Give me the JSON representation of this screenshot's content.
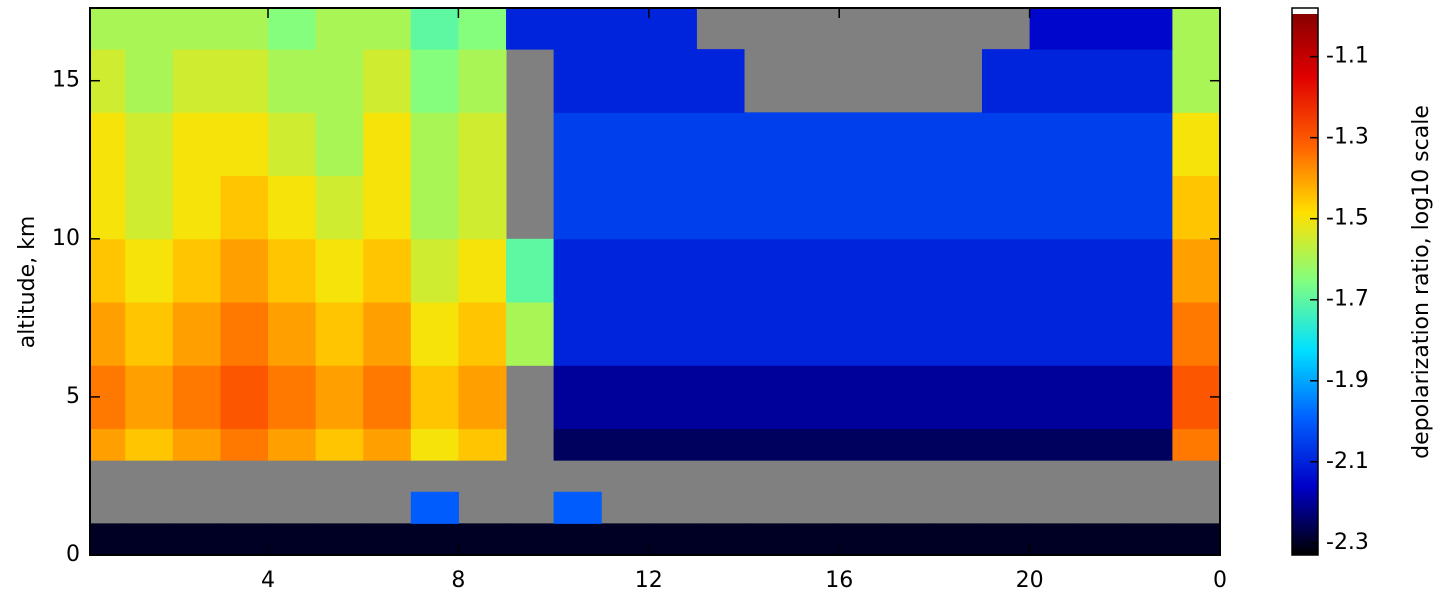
{
  "chart_data": {
    "type": "heatmap",
    "ylabel": "altitude, km",
    "colorbar_label": "depolarization ratio, log10 scale",
    "x_edges": [
      0.26,
      1,
      2,
      3,
      4,
      5,
      6,
      7,
      8,
      9,
      10,
      11,
      12,
      13,
      14,
      15,
      16,
      17,
      18,
      19,
      20,
      21,
      22,
      23,
      24
    ],
    "y_edges": [
      0,
      1,
      2,
      3,
      4,
      6,
      8,
      10,
      12,
      14,
      16,
      17.3
    ],
    "z": [
      [
        -2.3,
        -2.3,
        -2.3,
        -2.3,
        -2.3,
        -2.3,
        -2.3,
        -2.3,
        -2.3,
        -2.3,
        -2.3,
        -2.3,
        -2.3,
        -2.3,
        -2.3,
        -2.3,
        -2.3,
        -2.3,
        -2.3,
        -2.3,
        -2.3,
        -2.3,
        -2.3,
        -2.3
      ],
      [
        null,
        null,
        null,
        null,
        null,
        null,
        null,
        -2.0,
        null,
        null,
        -2.0,
        null,
        null,
        null,
        null,
        null,
        null,
        null,
        null,
        null,
        null,
        null,
        null,
        null
      ],
      [
        null,
        null,
        null,
        null,
        null,
        null,
        null,
        null,
        null,
        null,
        null,
        null,
        null,
        null,
        null,
        null,
        null,
        null,
        null,
        null,
        null,
        null,
        null,
        null
      ],
      [
        -1.4,
        -1.45,
        -1.4,
        -1.35,
        -1.4,
        -1.45,
        -1.4,
        -1.5,
        -1.45,
        null,
        -2.25,
        -2.25,
        -2.25,
        -2.25,
        -2.25,
        -2.25,
        -2.25,
        -2.25,
        -2.25,
        -2.25,
        -2.25,
        -2.25,
        -2.25,
        -1.35
      ],
      [
        -1.35,
        -1.4,
        -1.35,
        -1.3,
        -1.35,
        -1.4,
        -1.35,
        -1.45,
        -1.4,
        null,
        -2.2,
        -2.2,
        -2.2,
        -2.2,
        -2.2,
        -2.2,
        -2.2,
        -2.2,
        -2.2,
        -2.2,
        -2.2,
        -2.2,
        -2.2,
        -1.3
      ],
      [
        -1.4,
        -1.45,
        -1.4,
        -1.35,
        -1.4,
        -1.45,
        -1.4,
        -1.5,
        -1.45,
        -1.6,
        -2.1,
        -2.1,
        -2.1,
        -2.1,
        -2.1,
        -2.1,
        -2.1,
        -2.1,
        -2.1,
        -2.1,
        -2.1,
        -2.1,
        -2.1,
        -1.35
      ],
      [
        -1.45,
        -1.5,
        -1.45,
        -1.4,
        -1.45,
        -1.5,
        -1.45,
        -1.55,
        -1.5,
        -1.7,
        -2.1,
        -2.1,
        -2.1,
        -2.1,
        -2.1,
        -2.1,
        -2.1,
        -2.1,
        -2.1,
        -2.1,
        -2.1,
        -2.1,
        -2.1,
        -1.4
      ],
      [
        -1.5,
        -1.55,
        -1.5,
        -1.45,
        -1.5,
        -1.55,
        -1.5,
        -1.6,
        -1.55,
        null,
        -2.05,
        -2.05,
        -2.05,
        -2.05,
        -2.05,
        -2.05,
        -2.05,
        -2.05,
        -2.05,
        -2.05,
        -2.05,
        -2.05,
        -2.05,
        -1.45
      ],
      [
        -1.5,
        -1.55,
        -1.5,
        -1.5,
        -1.55,
        -1.6,
        -1.5,
        -1.6,
        -1.55,
        null,
        -2.05,
        -2.05,
        -2.05,
        -2.05,
        -2.05,
        -2.05,
        -2.05,
        -2.05,
        -2.05,
        -2.05,
        -2.05,
        -2.05,
        -2.05,
        -1.5
      ],
      [
        -1.55,
        -1.6,
        -1.55,
        -1.55,
        -1.6,
        -1.6,
        -1.55,
        -1.65,
        -1.6,
        null,
        -2.1,
        -2.1,
        -2.1,
        -2.1,
        null,
        null,
        null,
        null,
        null,
        -2.1,
        -2.1,
        -2.1,
        -2.1,
        -1.6
      ],
      [
        -1.6,
        -1.6,
        -1.6,
        -1.6,
        -1.65,
        -1.6,
        -1.6,
        -1.7,
        -1.65,
        -2.1,
        -2.1,
        -2.1,
        -2.1,
        null,
        null,
        null,
        null,
        null,
        null,
        null,
        -2.15,
        -2.15,
        -2.15,
        -1.6
      ]
    ],
    "xlim": [
      0.26,
      24
    ],
    "ylim": [
      0,
      17.3
    ],
    "xticks": [
      4,
      8,
      12,
      16,
      20,
      {
        "value": 24,
        "label": "0"
      }
    ],
    "yticks": [
      0,
      5,
      10,
      15
    ],
    "clim": [
      -2.33,
      -0.98
    ],
    "cticks": [
      -1.1,
      -1.3,
      -1.5,
      -1.7,
      -1.9,
      -2.1,
      -2.3
    ],
    "colormap": [
      "#000000",
      "#0000c8",
      "#0060ff",
      "#00e0ff",
      "#80ff80",
      "#ffe000",
      "#ff6000",
      "#e00000",
      "#800000"
    ],
    "nan_color": "#808080",
    "over_color": "#ffffff"
  }
}
